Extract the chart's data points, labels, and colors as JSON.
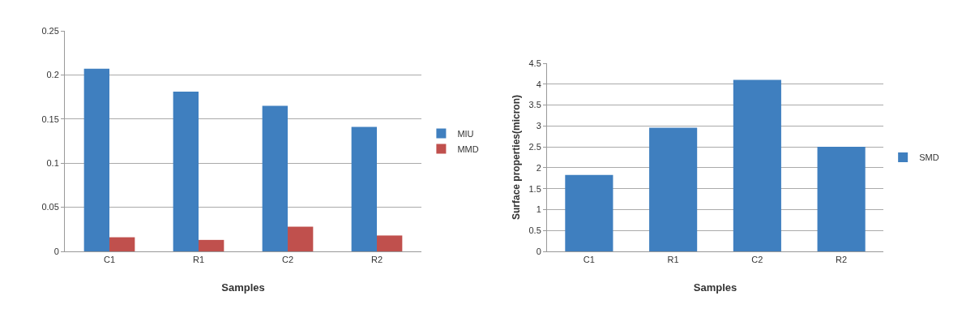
{
  "chart_data": [
    {
      "type": "bar",
      "xlabel": "Samples",
      "categories": [
        "C1",
        "R1",
        "C2",
        "R2"
      ],
      "series": [
        {
          "name": "MIU",
          "color": "#3f7fbf",
          "values": [
            0.207,
            0.181,
            0.165,
            0.141
          ]
        },
        {
          "name": "MMD",
          "color": "#c0504d",
          "values": [
            0.016,
            0.013,
            0.028,
            0.018
          ]
        }
      ],
      "ylim": [
        0,
        0.25
      ],
      "yticks": [
        0,
        0.05,
        0.1,
        0.15,
        0.2,
        0.25
      ],
      "grid": "y",
      "legend": "right"
    },
    {
      "type": "bar",
      "xlabel": "Samples",
      "ylabel": "Surface properties(micron)",
      "categories": [
        "C1",
        "R1",
        "C2",
        "R2"
      ],
      "series": [
        {
          "name": "SMD",
          "color": "#3f7fbf",
          "values": [
            1.83,
            2.96,
            4.1,
            2.5
          ]
        }
      ],
      "ylim": [
        0,
        4.5
      ],
      "yticks": [
        0,
        0.5,
        1,
        1.5,
        2,
        2.5,
        3,
        3.5,
        4,
        4.5
      ],
      "grid": "y",
      "legend": "right"
    }
  ]
}
